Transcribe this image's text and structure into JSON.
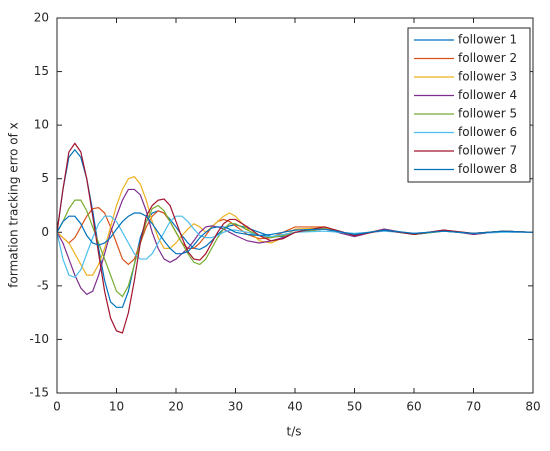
{
  "chart_data": {
    "type": "line",
    "xlabel": "t/s",
    "ylabel": "formation tracking erro of x",
    "x": [
      0,
      1,
      2,
      3,
      4,
      5,
      6,
      7,
      8,
      9,
      10,
      11,
      12,
      13,
      14,
      15,
      16,
      17,
      18,
      19,
      20,
      21,
      22,
      23,
      24,
      25,
      26,
      27,
      28,
      29,
      30,
      32,
      34,
      36,
      38,
      40,
      45,
      50,
      55,
      60,
      65,
      70,
      75,
      80
    ],
    "series": [
      {
        "name": "follower 1",
        "color": "#0072BD",
        "values": [
          0,
          4,
          7,
          7.7,
          7,
          5,
          2,
          -1.5,
          -4.5,
          -6.5,
          -7,
          -7,
          -5.5,
          -3,
          -0.5,
          1,
          1.8,
          2,
          1.8,
          1.2,
          0.5,
          -0.3,
          -1,
          -1.5,
          -1.6,
          -1.3,
          -0.8,
          -0.2,
          0.3,
          0.6,
          0.7,
          0.4,
          0,
          -0.4,
          -0.4,
          0,
          0.3,
          -0.2,
          0.2,
          -0.2,
          0.1,
          -0.1,
          0.1,
          0
        ]
      },
      {
        "name": "follower 2",
        "color": "#D95319",
        "values": [
          0,
          -0.5,
          -1,
          -0.5,
          0.5,
          1.5,
          2.2,
          2.3,
          1.8,
          0.5,
          -1,
          -2.5,
          -3,
          -2.5,
          -1,
          0.5,
          1.5,
          2,
          1.8,
          1,
          0,
          -1,
          -1.5,
          -1.5,
          -1,
          -0.3,
          0.5,
          1,
          1.2,
          1,
          0.6,
          -0.2,
          -0.6,
          -0.5,
          0,
          0.5,
          0.5,
          -0.3,
          0.3,
          -0.2,
          0.2,
          -0.2,
          0.1,
          0
        ]
      },
      {
        "name": "follower 3",
        "color": "#EDB120",
        "values": [
          0,
          -0.5,
          -1,
          -2,
          -3,
          -4,
          -4,
          -3,
          -1.5,
          0.5,
          2.5,
          4,
          5,
          5.2,
          4.5,
          3,
          1,
          -0.5,
          -1.5,
          -1.5,
          -1,
          -0.3,
          0.3,
          0.8,
          0.5,
          0,
          0.5,
          1,
          1.5,
          1.8,
          1.5,
          0.3,
          -0.8,
          -1,
          -0.5,
          0.3,
          0.4,
          -0.3,
          0.2,
          -0.2,
          0.2,
          -0.1,
          0.1,
          0
        ]
      },
      {
        "name": "follower 4",
        "color": "#7E2F8E",
        "values": [
          0,
          -1,
          -2.5,
          -4,
          -5.2,
          -5.8,
          -5.5,
          -4,
          -2,
          0,
          1.5,
          3,
          4,
          4,
          3.5,
          2,
          0,
          -1.5,
          -2.5,
          -2.8,
          -2.5,
          -2,
          -1.5,
          -0.8,
          0,
          0.5,
          0.6,
          0.5,
          0.3,
          0,
          -0.3,
          -0.8,
          -1,
          -0.8,
          -0.5,
          0,
          0.3,
          -0.4,
          0.3,
          -0.2,
          0.2,
          -0.2,
          0.1,
          0
        ]
      },
      {
        "name": "follower 5",
        "color": "#77AC30",
        "values": [
          0,
          1,
          2.2,
          3,
          3,
          2,
          0.5,
          -1,
          -2.5,
          -4,
          -5.5,
          -6,
          -5,
          -3,
          -1,
          1,
          2.2,
          2.5,
          2,
          1,
          0,
          -1,
          -2,
          -2.8,
          -3,
          -2.5,
          -1.5,
          -0.5,
          0.3,
          0.8,
          0.8,
          0.2,
          -0.3,
          -0.5,
          -0.3,
          0,
          0.3,
          -0.2,
          0.2,
          -0.2,
          0.1,
          -0.1,
          0.1,
          0
        ]
      },
      {
        "name": "follower 6",
        "color": "#4DBEEE",
        "values": [
          0,
          -2.5,
          -4,
          -4.2,
          -3.5,
          -2,
          -0.5,
          0.8,
          1.5,
          1.5,
          1,
          0,
          -1,
          -2,
          -2.5,
          -2.5,
          -2,
          -1,
          0,
          1,
          1.5,
          1.5,
          1,
          0.3,
          -0.3,
          -0.5,
          -0.5,
          -0.3,
          0,
          0.2,
          0.2,
          0,
          -0.3,
          -0.4,
          -0.2,
          0,
          0.1,
          -0.1,
          0.1,
          -0.1,
          0.1,
          -0.1,
          0,
          0
        ]
      },
      {
        "name": "follower 7",
        "color": "#A2142F",
        "values": [
          0,
          4,
          7.5,
          8.3,
          7.5,
          5,
          1.5,
          -2,
          -5.5,
          -8,
          -9.2,
          -9.4,
          -7.5,
          -4.5,
          -1,
          1.5,
          2.5,
          3,
          3.1,
          2.5,
          1,
          -0.5,
          -1.8,
          -2.5,
          -2.6,
          -2,
          -1,
          0,
          0.8,
          1.2,
          1.2,
          0.5,
          -0.3,
          -0.8,
          -0.6,
          0,
          0.5,
          -0.3,
          0.2,
          -0.2,
          0.2,
          -0.1,
          0.1,
          0
        ]
      },
      {
        "name": "follower 8",
        "color": "#0072BD",
        "values": [
          0,
          1,
          1.5,
          1.5,
          0.8,
          -0.3,
          -1,
          -1.2,
          -1,
          -0.5,
          0.3,
          1,
          1.5,
          1.8,
          1.8,
          1.5,
          0.8,
          0,
          -0.8,
          -1.5,
          -2,
          -2,
          -1.8,
          -1.2,
          -0.5,
          0,
          0.4,
          0.5,
          0.5,
          0.3,
          0,
          -0.2,
          -0.3,
          -0.2,
          0,
          0.2,
          0.3,
          -0.2,
          0.2,
          -0.1,
          0.1,
          -0.1,
          0.1,
          0
        ]
      }
    ],
    "xlim": [
      0,
      80
    ],
    "xticks": [
      0,
      10,
      20,
      30,
      40,
      50,
      60,
      70,
      80
    ],
    "ylim": [
      -15,
      20
    ],
    "yticks": [
      -15,
      -10,
      -5,
      0,
      5,
      10,
      15,
      20
    ],
    "grid": false,
    "legend": "northeast"
  }
}
